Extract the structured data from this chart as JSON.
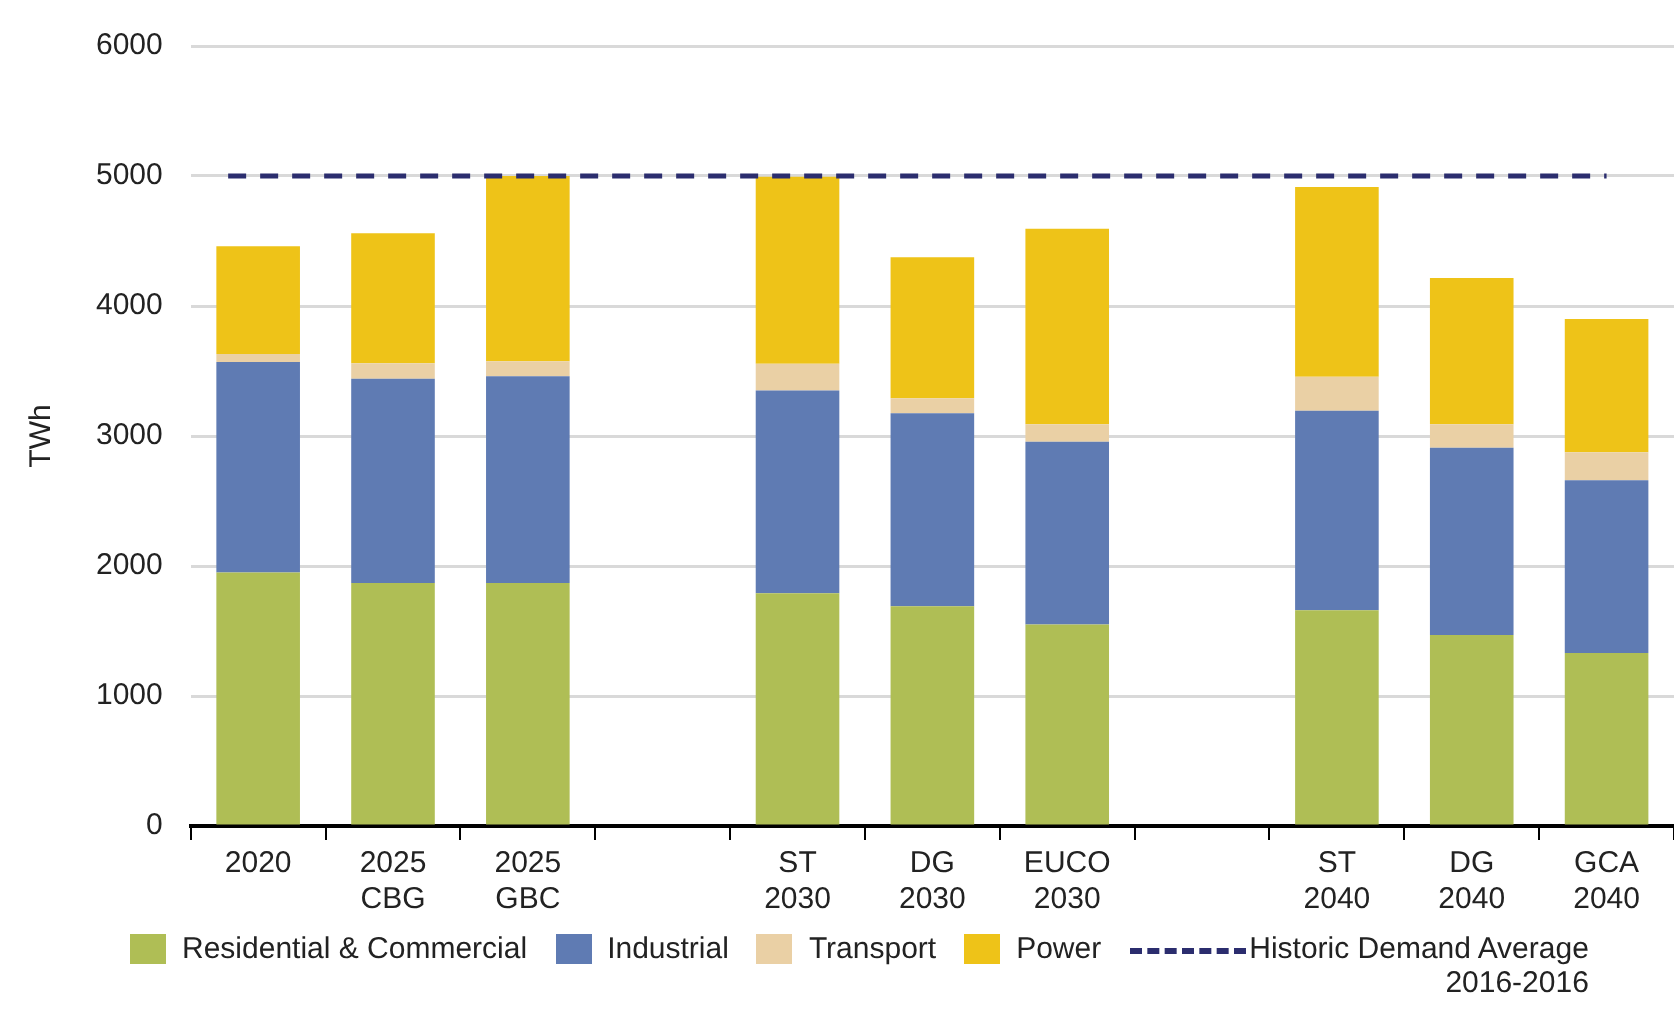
{
  "chart_data": {
    "type": "bar",
    "stacked": true,
    "ylabel": "TWh",
    "categories": [
      "2020",
      "2025\nCBG",
      "2025\nGBC",
      null,
      "ST\n2030",
      "DG\n2030",
      "EUCO\n2030",
      null,
      "ST\n2040",
      "DG\n2040",
      "GCA\n2040"
    ],
    "series": [
      {
        "name": "Residential & Commercial",
        "color": "#afbe55",
        "values": [
          1950,
          1870,
          1870,
          null,
          1790,
          1690,
          1550,
          null,
          1660,
          1470,
          1330
        ]
      },
      {
        "name": "Industrial",
        "color": "#5f7bb3",
        "values": [
          1620,
          1570,
          1590,
          null,
          1560,
          1485,
          1405,
          null,
          1535,
          1440,
          1330
        ]
      },
      {
        "name": "Transport",
        "color": "#ead0a5",
        "values": [
          60,
          120,
          115,
          null,
          205,
          115,
          135,
          null,
          260,
          180,
          215
        ]
      },
      {
        "name": "Power",
        "color": "#eec318",
        "values": [
          830,
          1000,
          1425,
          null,
          1440,
          1085,
          1505,
          null,
          1460,
          1125,
          1025
        ]
      }
    ],
    "ref_lines": [
      {
        "axis": "y",
        "value": 5000,
        "label": "Historic Demand Average\n2016-2016",
        "color": "#2b2d6e",
        "line_style": "dashed"
      }
    ],
    "ylim": [
      0,
      6000
    ],
    "yticks": [
      0,
      1000,
      2000,
      3000,
      4000,
      5000,
      6000
    ],
    "grid": "y",
    "legend": "bottom"
  }
}
